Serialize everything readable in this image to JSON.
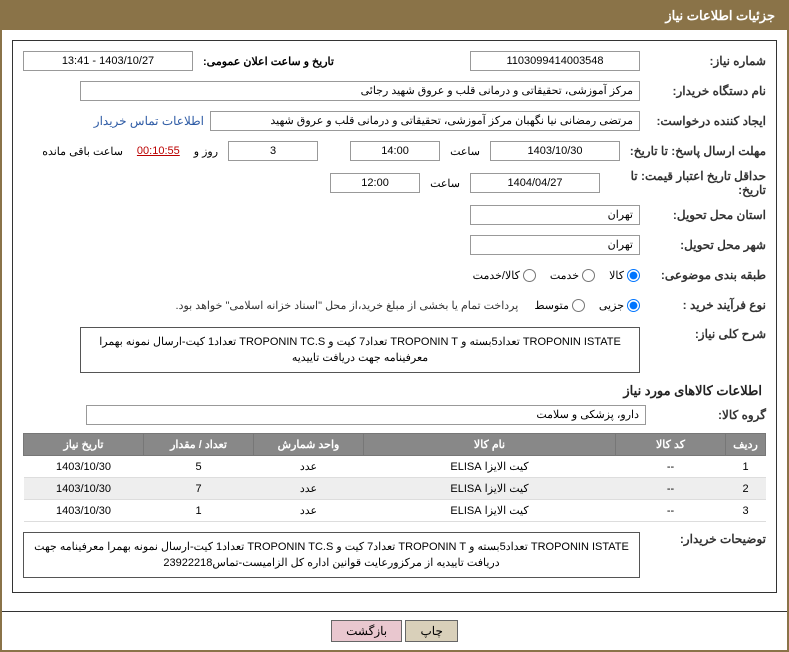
{
  "header": {
    "title": "جزئیات اطلاعات نیاز"
  },
  "form": {
    "need_no_label": "شماره نیاز:",
    "need_no": "1103099414003548",
    "announce_label": "تاریخ و ساعت اعلان عمومی:",
    "announce": "1403/10/27 - 13:41",
    "buyer_label": "نام دستگاه خریدار:",
    "buyer": "مرکز آموزشی، تحقیقاتی و درمانی قلب و عروق شهید رجائی",
    "requester_label": "ایجاد کننده درخواست:",
    "requester": "مرتضی رمضانی نیا نگهبان مرکز آموزشی، تحقیقاتی و درمانی قلب و عروق شهید",
    "contact_link": "اطلاعات تماس خریدار",
    "deadline_label": "مهلت ارسال پاسخ: تا تاریخ:",
    "deadline_date": "1403/10/30",
    "time_label": "ساعت",
    "deadline_time": "14:00",
    "days": "3",
    "days_suffix": "روز و",
    "remaining": "00:10:55",
    "remaining_suffix": "ساعت باقی مانده",
    "validity_label": "حداقل تاریخ اعتبار قیمت: تا تاریخ:",
    "validity_date": "1404/04/27",
    "validity_time": "12:00",
    "province_label": "استان محل تحویل:",
    "province": "تهران",
    "city_label": "شهر محل تحویل:",
    "city": "تهران",
    "category_label": "طبقه بندی موضوعی:",
    "radio_kala": "کالا",
    "radio_khedmat": "خدمت",
    "radio_kalakhedmat": "کالا/خدمت",
    "process_label": "نوع فرآیند خرید :",
    "radio_small": "جزیی",
    "radio_mid": "متوسط",
    "process_note": "پرداخت تمام یا بخشی از مبلغ خرید،از محل \"اسناد خزانه اسلامی\" خواهد بود.",
    "summary_label": "شرح کلی نیاز:",
    "summary": "TROPONIN ISTATE تعداد5بسته و TROPONIN T تعداد7 کیت و TROPONIN TC.S تعداد1 کیت-ارسال نمونه بهمرا معرفینامه جهت دریافت تاییدیه",
    "info_title": "اطلاعات کالاهای مورد نیاز",
    "goods_label": "گروه کالا:",
    "goods_group": "دارو، پزشکی و سلامت",
    "notes_label": "توضیحات خریدار:",
    "notes": "TROPONIN ISTATE تعداد5بسته و TROPONIN T تعداد7 کیت و TROPONIN TC.S تعداد1 کیت-ارسال نمونه بهمرا معرفینامه جهت دریافت تاییدیه از مرکزورعایت قوانین اداره کل الزامیست-تماس23922218"
  },
  "table": {
    "headers": {
      "idx": "ردیف",
      "code": "کد کالا",
      "name": "نام کالا",
      "unit": "واحد شمارش",
      "qty": "تعداد / مقدار",
      "date": "تاریخ نیاز"
    },
    "rows": [
      {
        "idx": "1",
        "code": "--",
        "name": "کیت الایزا ELISA",
        "unit": "عدد",
        "qty": "5",
        "date": "1403/10/30"
      },
      {
        "idx": "2",
        "code": "--",
        "name": "کیت الایزا ELISA",
        "unit": "عدد",
        "qty": "7",
        "date": "1403/10/30"
      },
      {
        "idx": "3",
        "code": "--",
        "name": "کیت الایزا ELISA",
        "unit": "عدد",
        "qty": "1",
        "date": "1403/10/30"
      }
    ]
  },
  "buttons": {
    "print": "چاپ",
    "back": "بازگشت"
  }
}
